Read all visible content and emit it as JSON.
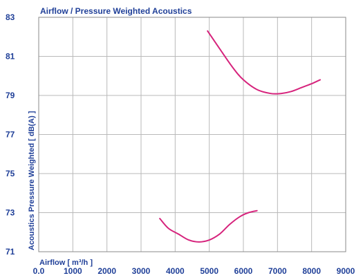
{
  "chart_data": {
    "type": "line",
    "title": "Airflow / Pressure Weighted Acoustics",
    "xlabel": "Airflow [ m³/h ]",
    "ylabel": "Acoustics Pressure Weighted [ dB(A) ]",
    "xlim": [
      0,
      9000
    ],
    "ylim": [
      71,
      83
    ],
    "x_ticks": [
      "0.0",
      "1000",
      "2000",
      "3000",
      "4000",
      "5000",
      "6000",
      "7000",
      "8000",
      "9000"
    ],
    "y_ticks": [
      "71",
      "73",
      "75",
      "77",
      "79",
      "81",
      "83"
    ],
    "grid": true,
    "line_color": "#d6237c",
    "series": [
      {
        "x": [
          4950,
          5300,
          5700,
          6000,
          6400,
          6800,
          7100,
          7400,
          7700,
          8000,
          8250
        ],
        "y": [
          82.3,
          81.4,
          80.4,
          79.8,
          79.3,
          79.1,
          79.1,
          79.2,
          79.4,
          79.6,
          79.8
        ]
      },
      {
        "x": [
          3550,
          3800,
          4100,
          4400,
          4700,
          5000,
          5300,
          5600,
          5900,
          6150,
          6400
        ],
        "y": [
          72.7,
          72.2,
          71.9,
          71.6,
          71.5,
          71.6,
          71.9,
          72.4,
          72.8,
          73.0,
          73.1
        ]
      }
    ]
  }
}
